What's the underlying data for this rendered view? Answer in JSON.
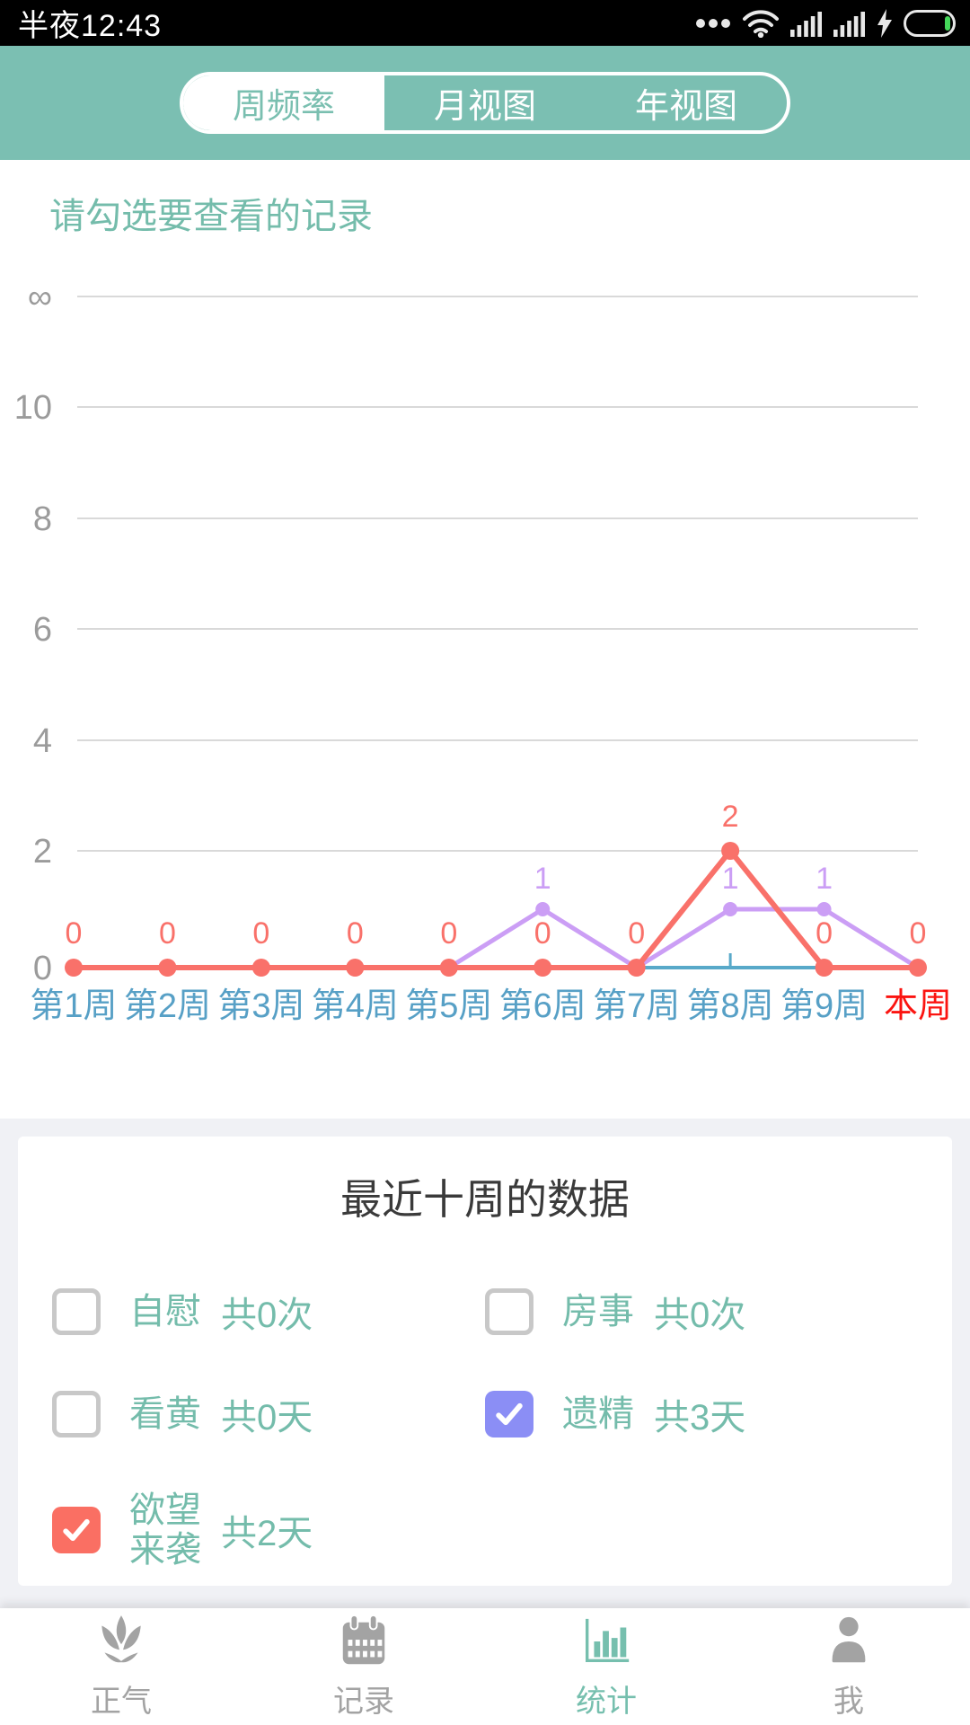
{
  "status_bar": {
    "time": "半夜12:43",
    "icons": [
      "more-dots",
      "wifi",
      "signal-1",
      "signal-2",
      "charging",
      "battery"
    ]
  },
  "header": {
    "tabs": [
      {
        "label": "周频率",
        "active": true
      },
      {
        "label": "月视图",
        "active": false
      },
      {
        "label": "年视图",
        "active": false
      }
    ]
  },
  "chart_section": {
    "prompt": "请勾选要查看的记录"
  },
  "chart_data": {
    "type": "line",
    "title": "最近十周的数据",
    "categories": [
      "第1周",
      "第2周",
      "第3周",
      "第4周",
      "第5周",
      "第6周",
      "第7周",
      "第8周",
      "第9周",
      "本周"
    ],
    "series": [
      {
        "name": "遗精",
        "color": "#cb9ef5",
        "values": [
          0,
          0,
          0,
          0,
          0,
          1,
          0,
          1,
          1,
          0
        ],
        "labels": "nonzero"
      },
      {
        "name": "欲望来袭",
        "color": "#f9716a",
        "values": [
          0,
          0,
          0,
          0,
          0,
          0,
          0,
          2,
          0,
          0
        ],
        "labels": "all"
      }
    ],
    "y_ticks": [
      "∞",
      "10",
      "8",
      "6",
      "4",
      "2",
      "0"
    ],
    "ylim": [
      0,
      "∞"
    ],
    "grid": true,
    "x_label_color": "#57a0c6",
    "x_label_last_color": "#fb1410",
    "y_label_color": "#9b9b9b",
    "grid_color": "#d9d9d9",
    "axis_line_color": "#58a9c9",
    "axis_tick_category": "第8周",
    "legend_position": "bottom-card"
  },
  "summary_card": {
    "title": "最近十周的数据",
    "legend": [
      {
        "label": "自慰",
        "count": "共0次",
        "checked": false,
        "color": ""
      },
      {
        "label": "房事",
        "count": "共0次",
        "checked": false,
        "color": ""
      },
      {
        "label": "看黄",
        "count": "共0天",
        "checked": false,
        "color": ""
      },
      {
        "label": "遗精",
        "count": "共3天",
        "checked": true,
        "color": "#8b8ef5"
      },
      {
        "label": "欲望\n来袭",
        "count": "共2天",
        "checked": true,
        "color": "#fa6f63"
      }
    ]
  },
  "bottom_nav": {
    "active_color": "#76bfae",
    "items": [
      {
        "label": "正气",
        "icon": "lotus-icon",
        "active": false
      },
      {
        "label": "记录",
        "icon": "calendar-icon",
        "active": false
      },
      {
        "label": "统计",
        "icon": "stats-icon",
        "active": true
      },
      {
        "label": "我",
        "icon": "profile-icon",
        "active": false
      }
    ]
  }
}
